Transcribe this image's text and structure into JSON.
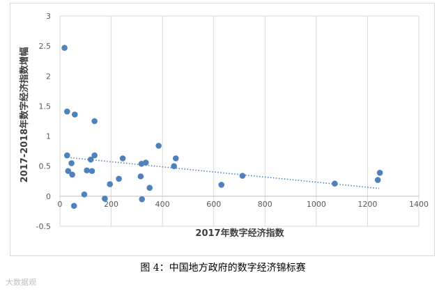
{
  "chart_data": {
    "type": "scatter",
    "title": "",
    "xlabel": "2017年数字经济指数",
    "ylabel": "2017-2018年数字经济指数增幅",
    "xlim": [
      0,
      1400
    ],
    "ylim": [
      -0.5,
      3
    ],
    "xticks": [
      0,
      200,
      400,
      600,
      800,
      1000,
      1200,
      1400
    ],
    "yticks": [
      -0.5,
      0,
      0.5,
      1,
      1.5,
      2,
      2.5,
      3
    ],
    "ytick_labels": [
      "-0.5",
      "0",
      "0.5",
      "1",
      "1.5",
      "2",
      "2.5",
      "3"
    ],
    "grid": true,
    "point_color": "#4f81bd",
    "trendline": {
      "style": "dotted linear",
      "color": "#4f81bd",
      "from": [
        20,
        0.65
      ],
      "to": [
        1245,
        0.13
      ]
    },
    "series": [
      {
        "points": [
          [
            18,
            2.47
          ],
          [
            28,
            1.41
          ],
          [
            58,
            1.36
          ],
          [
            135,
            1.25
          ],
          [
            28,
            0.68
          ],
          [
            32,
            0.42
          ],
          [
            45,
            0.55
          ],
          [
            48,
            0.36
          ],
          [
            55,
            -0.16
          ],
          [
            105,
            0.43
          ],
          [
            120,
            0.61
          ],
          [
            125,
            0.42
          ],
          [
            135,
            0.68
          ],
          [
            95,
            0.03
          ],
          [
            175,
            -0.04
          ],
          [
            195,
            0.2
          ],
          [
            230,
            0.29
          ],
          [
            245,
            0.63
          ],
          [
            315,
            0.33
          ],
          [
            318,
            0.54
          ],
          [
            320,
            -0.05
          ],
          [
            335,
            0.56
          ],
          [
            350,
            0.14
          ],
          [
            385,
            0.84
          ],
          [
            445,
            0.5
          ],
          [
            452,
            0.63
          ],
          [
            630,
            0.19
          ],
          [
            712,
            0.34
          ],
          [
            1072,
            0.21
          ],
          [
            1240,
            0.27
          ],
          [
            1248,
            0.39
          ]
        ]
      }
    ]
  },
  "caption": "图 4：中国地方政府的数字经济锦标赛",
  "watermark": "大数据观"
}
